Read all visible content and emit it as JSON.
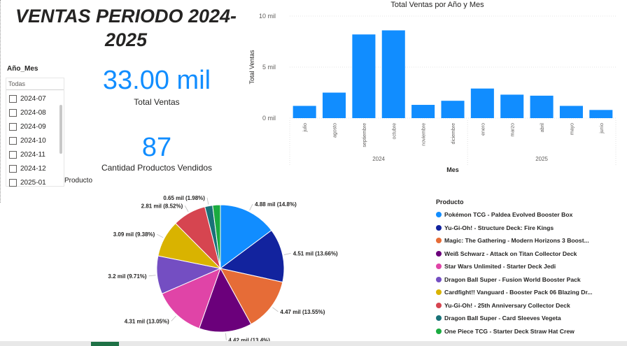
{
  "header": {
    "title": "VENTAS PERIODO 2024-2025"
  },
  "kpis": [
    {
      "value": "33.00 mil",
      "label": "Total Ventas"
    },
    {
      "value": "87",
      "label": "Cantidad Productos Vendidos"
    }
  ],
  "slicer": {
    "title": "Año_Mes",
    "dropdown_value": "Todas",
    "items": [
      "2024-07",
      "2024-08",
      "2024-09",
      "2024-10",
      "2024-11",
      "2024-12",
      "2025-01"
    ]
  },
  "colors": {
    "accent": "#118DFF",
    "bar": "#118DFF"
  },
  "chart_data": [
    {
      "type": "bar",
      "title": "Total Ventas por Año y Mes",
      "xlabel": "Mes",
      "ylabel": "Total Ventas",
      "categories": [
        "julio",
        "agosto",
        "septiembre",
        "octubre",
        "noviembre",
        "diciembre",
        "enero",
        "marzo",
        "abril",
        "mayo",
        "junio"
      ],
      "years": [
        {
          "label": "2024",
          "count": 6
        },
        {
          "label": "2025",
          "count": 5
        }
      ],
      "values": [
        1.2,
        2.5,
        8.2,
        8.6,
        1.3,
        1.7,
        2.9,
        2.3,
        2.2,
        1.2,
        0.8
      ],
      "ylim": [
        0,
        10
      ],
      "yticks": [
        0,
        5,
        10
      ],
      "ytick_labels": [
        "0 mil",
        "5 mil",
        "10 mil"
      ],
      "grid": true
    },
    {
      "type": "pie",
      "legend_title": "Producto",
      "legend_position": "right",
      "slices": [
        {
          "name": "Pokémon TCG - Paldea Evolved Booster Box",
          "value": 4.88,
          "label": "4.88 mil (14.8%)",
          "color": "#118DFF"
        },
        {
          "name": "Yu-Gi-Oh! - Structure Deck: Fire Kings",
          "value": 4.51,
          "label": "4.51 mil (13.66%)",
          "color": "#12239E"
        },
        {
          "name": "Magic: The Gathering - Modern Horizons 3 Boost...",
          "value": 4.47,
          "label": "4.47 mil (13.55%)",
          "color": "#E66C37"
        },
        {
          "name": "Weiß Schwarz - Attack on Titan Collector Deck",
          "value": 4.42,
          "label": "4.42 mil (13.4%)",
          "color": "#6B007B"
        },
        {
          "name": "Star Wars Unlimited - Starter Deck Jedi",
          "value": 4.31,
          "label": "4.31 mil (13.05%)",
          "color": "#E044A7"
        },
        {
          "name": "Dragon Ball Super - Fusion World Booster Pack",
          "value": 3.2,
          "label": "3.2 mil (9.71%)",
          "color": "#744EC2"
        },
        {
          "name": "Cardfight!! Vanguard - Booster Pack 06 Blazing Dr...",
          "value": 3.09,
          "label": "3.09 mil (9.38%)",
          "color": "#D9B300"
        },
        {
          "name": "Yu-Gi-Oh! - 25th Anniversary Collector Deck",
          "value": 2.81,
          "label": "2.81 mil (8.52%)",
          "color": "#D64550"
        },
        {
          "name": "Dragon Ball Super - Card Sleeves Vegeta",
          "value": 0.65,
          "label": "0.65 mil (1.98%)",
          "color": "#197278"
        },
        {
          "name": "One Piece TCG - Starter Deck Straw Hat Crew",
          "value": 0.65,
          "label": "",
          "color": "#1AAB40"
        }
      ]
    }
  ]
}
